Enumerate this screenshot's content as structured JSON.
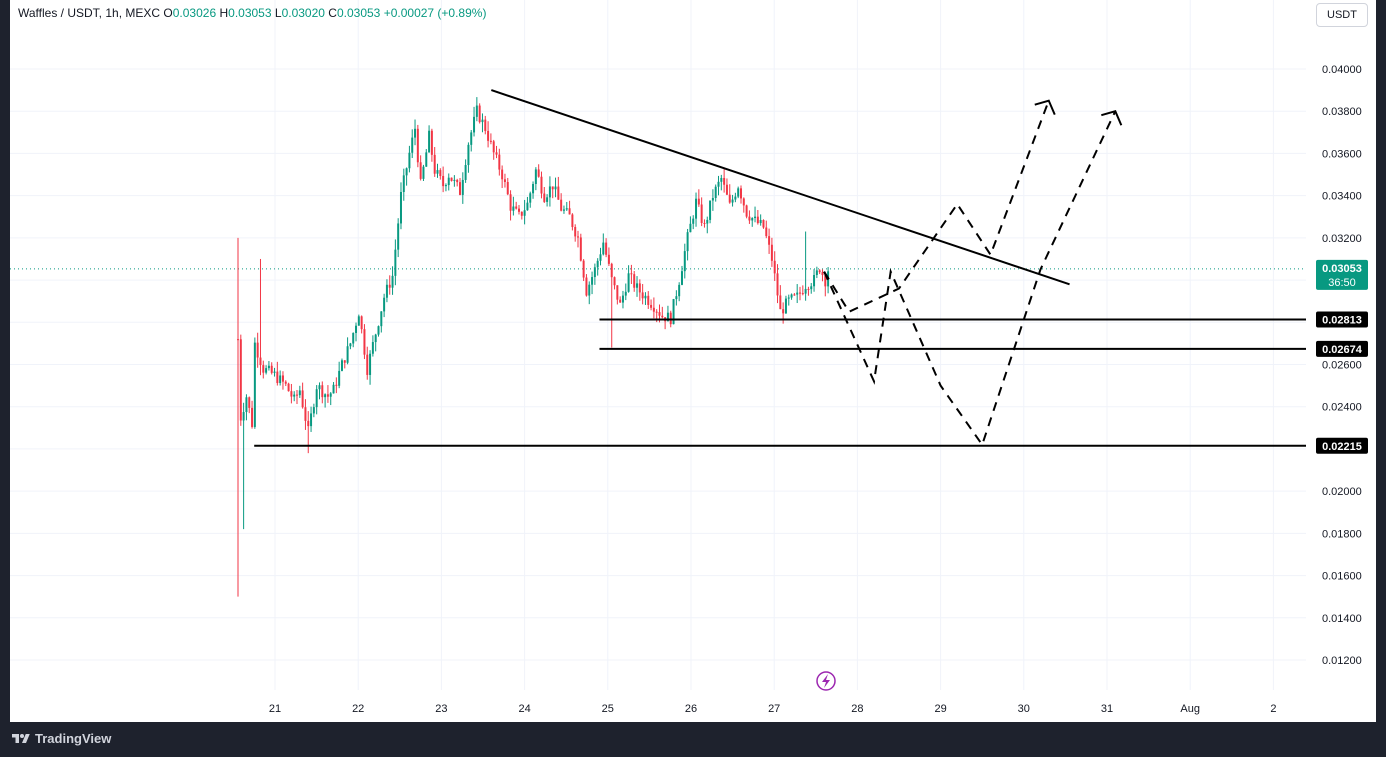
{
  "legend": {
    "symbol": "Waffles / USDT, 1h, MEXC",
    "o_label": "O",
    "o_value": "0.03026",
    "h_label": "H",
    "h_value": "0.03053",
    "l_label": "L",
    "l_value": "0.03020",
    "c_label": "C",
    "c_value": "0.03053",
    "change": "+0.00027 (+0.89%)"
  },
  "currency": "USDT",
  "brand": "TradingView",
  "colors": {
    "up": "#089981",
    "down": "#f23645",
    "lines": "#000000",
    "price_line": "#089981",
    "accent_icon": "#9c27b0"
  },
  "price_label": {
    "price": "0.03053",
    "countdown": "36:50"
  },
  "chart_data": {
    "type": "candlestick",
    "symbol": "Waffles / USDT",
    "interval": "1h",
    "exchange": "MEXC",
    "ylim": [
      0.011,
      0.0416
    ],
    "y_ticks": [
      "0.04000",
      "0.03800",
      "0.03600",
      "0.03400",
      "0.03200",
      "0.03000",
      "0.02800",
      "0.02600",
      "0.02400",
      "0.02200",
      "0.02000",
      "0.01800",
      "0.01600",
      "0.01400",
      "0.01200"
    ],
    "x_ticks": [
      "21",
      "22",
      "23",
      "24",
      "25",
      "26",
      "27",
      "28",
      "29",
      "30",
      "31",
      "Aug",
      "2"
    ],
    "current_price": 0.03053,
    "price_path": [
      [
        0,
        0.0272
      ],
      [
        1,
        0.0235
      ],
      [
        3,
        0.0245
      ],
      [
        5,
        0.0232
      ],
      [
        6,
        0.027
      ],
      [
        9,
        0.0258
      ],
      [
        13,
        0.0255
      ],
      [
        17,
        0.025
      ],
      [
        20,
        0.0243
      ],
      [
        22,
        0.0248
      ],
      [
        25,
        0.0228
      ],
      [
        28,
        0.025
      ],
      [
        32,
        0.0245
      ],
      [
        34,
        0.0248
      ],
      [
        37,
        0.026
      ],
      [
        40,
        0.027
      ],
      [
        43,
        0.0285
      ],
      [
        46,
        0.0258
      ],
      [
        49,
        0.0275
      ],
      [
        52,
        0.0292
      ],
      [
        55,
        0.0302
      ],
      [
        58,
        0.034
      ],
      [
        61,
        0.036
      ],
      [
        63,
        0.0372
      ],
      [
        65,
        0.0345
      ],
      [
        68,
        0.0368
      ],
      [
        70,
        0.0352
      ],
      [
        73,
        0.0345
      ],
      [
        75,
        0.035
      ],
      [
        79,
        0.0342
      ],
      [
        82,
        0.0365
      ],
      [
        85,
        0.038
      ],
      [
        88,
        0.0372
      ],
      [
        91,
        0.036
      ],
      [
        94,
        0.035
      ],
      [
        97,
        0.0335
      ],
      [
        100,
        0.033
      ],
      [
        103,
        0.0336
      ],
      [
        106,
        0.0352
      ],
      [
        109,
        0.034
      ],
      [
        112,
        0.0345
      ],
      [
        115,
        0.0334
      ],
      [
        118,
        0.033
      ],
      [
        121,
        0.032
      ],
      [
        124,
        0.0295
      ],
      [
        127,
        0.0305
      ],
      [
        130,
        0.0318
      ],
      [
        133,
        0.03
      ],
      [
        136,
        0.0288
      ],
      [
        139,
        0.0302
      ],
      [
        142,
        0.0296
      ],
      [
        145,
        0.0292
      ],
      [
        148,
        0.0288
      ],
      [
        151,
        0.0283
      ],
      [
        154,
        0.0282
      ],
      [
        157,
        0.03
      ],
      [
        160,
        0.032
      ],
      [
        163,
        0.0337
      ],
      [
        166,
        0.0325
      ],
      [
        169,
        0.034
      ],
      [
        172,
        0.0348
      ],
      [
        175,
        0.0335
      ],
      [
        178,
        0.0345
      ],
      [
        181,
        0.0332
      ],
      [
        184,
        0.0328
      ],
      [
        187,
        0.0325
      ],
      [
        190,
        0.031
      ],
      [
        193,
        0.0285
      ],
      [
        196,
        0.029
      ],
      [
        199,
        0.0292
      ],
      [
        202,
        0.0298
      ],
      [
        205,
        0.03
      ],
      [
        207,
        0.0306
      ],
      [
        209,
        0.03
      ],
      [
        210,
        0.0305
      ]
    ],
    "trendline": {
      "from": [
        0.039,
        23.6
      ],
      "to": [
        0.0298,
        30.55
      ]
    },
    "horizontal_levels": [
      {
        "price": 0.02813,
        "label": "0.02813"
      },
      {
        "price": 0.02674,
        "label": "0.02674"
      },
      {
        "price": 0.02215,
        "label": "0.02215"
      }
    ],
    "projection_paths": [
      [
        [
          27.6,
          0.0304
        ],
        [
          28.2,
          0.0252
        ],
        [
          28.4,
          0.0304
        ],
        [
          29.0,
          0.025
        ],
        [
          29.5,
          0.0222
        ],
        [
          30.2,
          0.0305
        ],
        [
          31.1,
          0.038
        ]
      ],
      [
        [
          27.6,
          0.0304
        ],
        [
          27.9,
          0.0285
        ],
        [
          28.5,
          0.0296
        ],
        [
          29.2,
          0.0336
        ],
        [
          29.6,
          0.0312
        ],
        [
          30.3,
          0.0385
        ]
      ]
    ]
  }
}
